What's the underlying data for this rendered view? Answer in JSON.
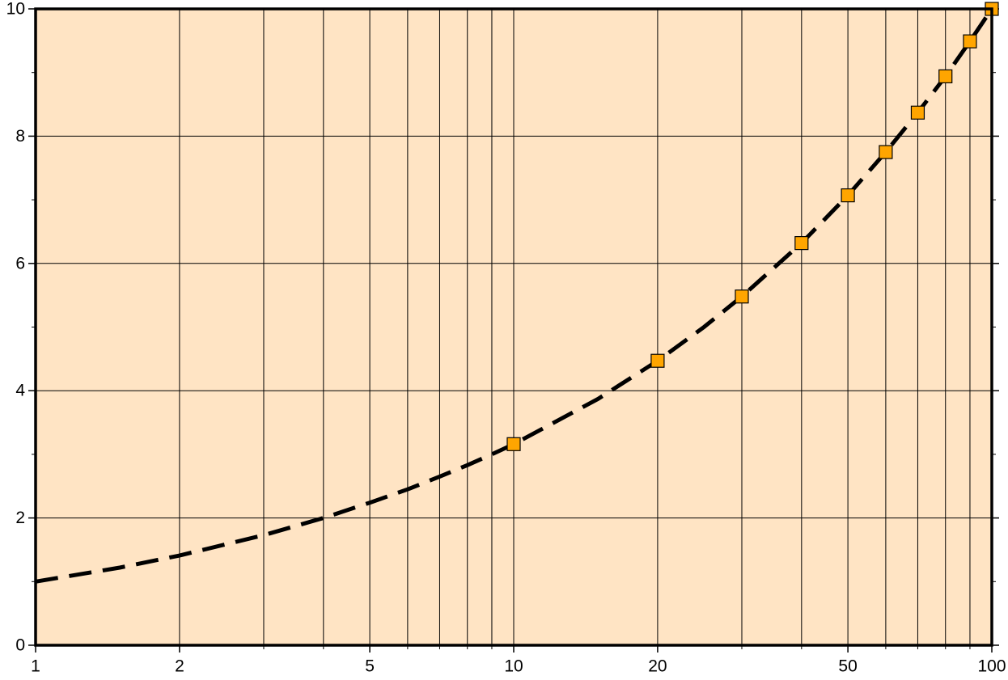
{
  "chart_data": {
    "type": "line",
    "xscale": "log",
    "background": "#ffe4c4",
    "grid": true,
    "xlim": [
      1,
      100
    ],
    "ylim": [
      0,
      10
    ],
    "xticks": [
      1,
      2,
      5,
      10,
      20,
      50,
      100
    ],
    "xgrid": [
      2,
      3,
      4,
      5,
      6,
      7,
      8,
      9,
      10,
      20,
      30,
      40,
      50,
      60,
      70,
      80,
      90
    ],
    "yticks": [
      0,
      2,
      4,
      6,
      8,
      10
    ],
    "yminor": [
      1,
      3,
      5,
      7,
      9
    ],
    "series": [
      {
        "kind": "line",
        "color": "#000000",
        "dashed": true,
        "x": [
          1,
          1.5,
          2,
          3,
          4,
          5,
          6,
          7,
          8,
          9,
          10,
          15,
          20,
          25,
          30,
          40,
          50,
          60,
          70,
          80,
          90,
          100
        ],
        "values": [
          1,
          1.22,
          1.41,
          1.73,
          2,
          2.24,
          2.45,
          2.65,
          2.83,
          3,
          3.16,
          3.87,
          4.47,
          5,
          5.48,
          6.32,
          7.07,
          7.75,
          8.37,
          8.94,
          9.49,
          10
        ]
      },
      {
        "kind": "marker",
        "color": "#ffa500",
        "x": [
          10,
          20,
          30,
          40,
          50,
          60,
          70,
          80,
          90,
          100
        ],
        "values": [
          3.16,
          4.47,
          5.48,
          6.32,
          7.07,
          7.75,
          8.37,
          8.94,
          9.49,
          10
        ]
      }
    ]
  }
}
